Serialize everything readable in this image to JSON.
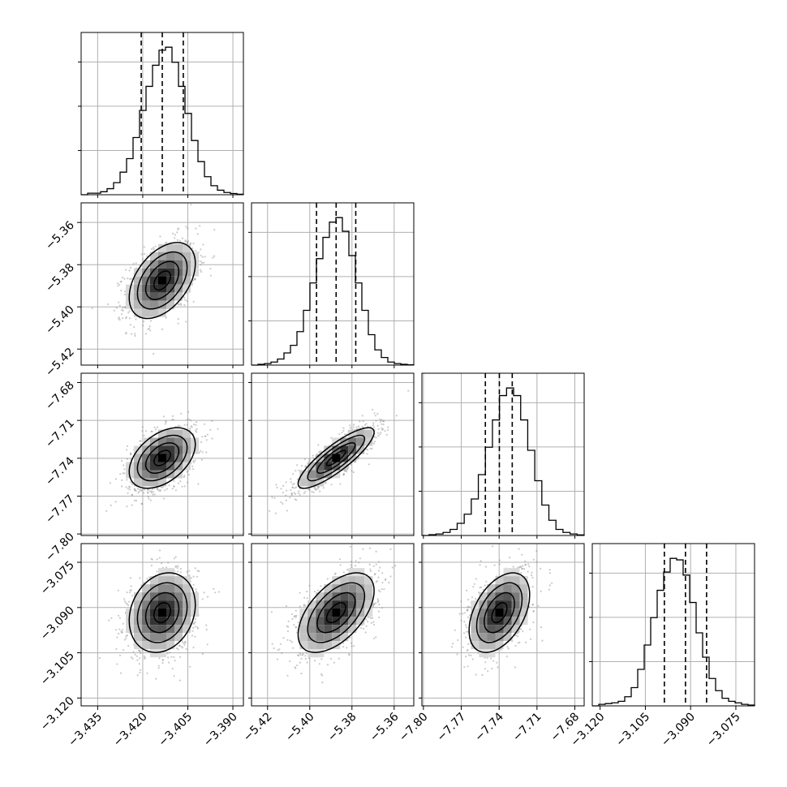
{
  "chart_data": {
    "type": "corner",
    "grid": true,
    "parameters": [
      {
        "index": 0,
        "range": [
          -3.4405,
          -3.3865
        ],
        "ticks": [
          -3.435,
          -3.42,
          -3.405,
          -3.39
        ],
        "tick_labels": [
          "−3.435",
          "−3.420",
          "−3.405",
          "−3.390"
        ],
        "quantiles": [
          -3.4205,
          -3.4135,
          -3.4065
        ],
        "histogram": [
          0,
          1,
          1,
          2,
          4,
          8,
          15,
          24,
          38,
          56,
          72,
          86,
          96,
          98,
          88,
          72,
          54,
          36,
          22,
          12,
          6,
          3,
          1.5,
          0.8,
          0.3
        ]
      },
      {
        "index": 1,
        "range": [
          -5.4276,
          -5.3507
        ],
        "ticks": [
          -5.42,
          -5.4,
          -5.38,
          -5.36
        ],
        "tick_labels": [
          "−5.42",
          "−5.40",
          "−5.38",
          "−5.36"
        ],
        "quantiles": [
          -5.3968,
          -5.3875,
          -5.3782
        ],
        "histogram": [
          0,
          0.5,
          1,
          2,
          4,
          8,
          13,
          22,
          36,
          54,
          70,
          84,
          94,
          97,
          88,
          72,
          54,
          36,
          20,
          10,
          5,
          2,
          1,
          0.5,
          0.2
        ]
      },
      {
        "index": 2,
        "range": [
          -7.8012,
          -7.6726
        ],
        "ticks": [
          -7.8,
          -7.77,
          -7.74,
          -7.71,
          -7.68
        ],
        "tick_labels": [
          "−7.80",
          "−7.77",
          "−7.74",
          "−7.71",
          "−7.68"
        ],
        "quantiles": [
          -7.7509,
          -7.7398,
          -7.7296
        ],
        "histogram": [
          0,
          0.5,
          1,
          2,
          4,
          8,
          14,
          24,
          40,
          58,
          76,
          92,
          97,
          92,
          76,
          56,
          36,
          20,
          10,
          4,
          2,
          1,
          0.4
        ]
      },
      {
        "index": 3,
        "range": [
          -3.1226,
          -3.0688
        ],
        "ticks": [
          -3.12,
          -3.105,
          -3.09,
          -3.075
        ],
        "tick_labels": [
          "−3.120",
          "−3.105",
          "−3.090",
          "−3.075"
        ],
        "quantiles": [
          -3.0987,
          -3.0917,
          -3.0847
        ],
        "histogram": [
          0,
          1,
          1.5,
          2,
          3,
          6,
          12,
          24,
          40,
          58,
          76,
          88,
          97,
          96,
          86,
          68,
          48,
          32,
          18,
          10,
          5,
          3,
          2,
          1,
          0.5
        ]
      }
    ],
    "pairs": [
      {
        "x": 0,
        "y": 1,
        "mean": [
          -3.4135,
          -5.3875
        ],
        "sd": [
          0.0055,
          0.009
        ],
        "rho": 0.45
      },
      {
        "x": 0,
        "y": 2,
        "mean": [
          -3.4135,
          -7.7398
        ],
        "sd": [
          0.0055,
          0.012
        ],
        "rho": 0.45
      },
      {
        "x": 1,
        "y": 2,
        "mean": [
          -5.3875,
          -7.7398
        ],
        "sd": [
          0.009,
          0.012
        ],
        "rho": 0.85
      },
      {
        "x": 0,
        "y": 3,
        "mean": [
          -3.4135,
          -3.0917
        ],
        "sd": [
          0.0055,
          0.0066
        ],
        "rho": 0.2
      },
      {
        "x": 1,
        "y": 3,
        "mean": [
          -5.3875,
          -3.0917
        ],
        "sd": [
          0.009,
          0.0066
        ],
        "rho": 0.55
      },
      {
        "x": 2,
        "y": 3,
        "mean": [
          -7.7398,
          -3.0917
        ],
        "sd": [
          0.012,
          0.0066
        ],
        "rho": 0.45
      }
    ],
    "contour_levels_sigma": [
      0.5,
      1.0,
      1.5,
      2.0
    ],
    "colors": {
      "points": "#8a8a8a",
      "lines": "#000000",
      "grid": "#b0b0b0",
      "frame": "#000000"
    }
  }
}
